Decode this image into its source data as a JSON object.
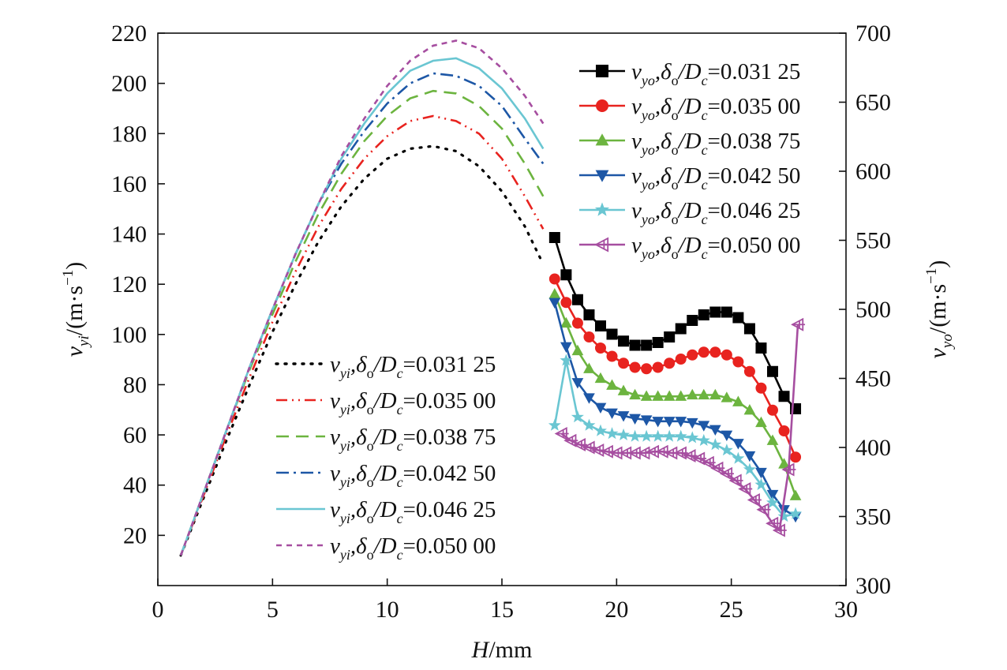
{
  "chart_data": {
    "type": "line",
    "xlabel": "H/mm",
    "ylabel_left": "v_yi/(m·s⁻¹)",
    "ylabel_right": "v_yo/(m·s⁻¹)",
    "xlim": [
      0,
      30
    ],
    "ylim_left": [
      0,
      220
    ],
    "ylim_right": [
      300,
      700
    ],
    "x_ticks": [
      0,
      5,
      10,
      15,
      20,
      25,
      30
    ],
    "y_ticks_left": [
      20,
      40,
      60,
      80,
      100,
      120,
      140,
      160,
      180,
      200,
      220
    ],
    "y_ticks_right": [
      300,
      350,
      400,
      450,
      500,
      550,
      600,
      650,
      700
    ],
    "grid": false,
    "legend_inner": {
      "placement": "top-right",
      "entries": [
        {
          "var_main": "v",
          "var_sub": "yo",
          "rest": ",δ",
          "sub2": "o",
          "rest2": "/D",
          "sub3": "c",
          "value": "=0.031 25",
          "color": "#000000",
          "marker": "square"
        },
        {
          "var_main": "v",
          "var_sub": "yo",
          "rest": ",δ",
          "sub2": "o",
          "rest2": "/D",
          "sub3": "c",
          "value": "=0.035 00",
          "color": "#e8231f",
          "marker": "circle"
        },
        {
          "var_main": "v",
          "var_sub": "yo",
          "rest": ",δ",
          "sub2": "o",
          "rest2": "/D",
          "sub3": "c",
          "value": "=0.038 75",
          "color": "#6cb43f",
          "marker": "triangle-up"
        },
        {
          "var_main": "v",
          "var_sub": "yo",
          "rest": ",δ",
          "sub2": "o",
          "rest2": "/D",
          "sub3": "c",
          "value": "=0.042 50",
          "color": "#1d57a6",
          "marker": "triangle-down"
        },
        {
          "var_main": "v",
          "var_sub": "yo",
          "rest": ",δ",
          "sub2": "o",
          "rest2": "/D",
          "sub3": "c",
          "value": "=0.046 25",
          "color": "#6ac6d2",
          "marker": "star"
        },
        {
          "var_main": "v",
          "var_sub": "yo",
          "rest": ",δ",
          "sub2": "o",
          "rest2": "/D",
          "sub3": "c",
          "value": "=0.050 00",
          "color": "#a64ea0",
          "marker": "triangle-left"
        }
      ]
    },
    "legend_left": {
      "placement": "bottom-left",
      "entries": [
        {
          "var_main": "v",
          "var_sub": "yi",
          "rest": ",δ",
          "sub2": "o",
          "rest2": "/D",
          "sub3": "c",
          "value": "=0.031 25",
          "color": "#000000",
          "dash": "dotted"
        },
        {
          "var_main": "v",
          "var_sub": "yi",
          "rest": ",δ",
          "sub2": "o",
          "rest2": "/D",
          "sub3": "c",
          "value": "=0.035 00",
          "color": "#e8231f",
          "dash": "dash-dot-dot"
        },
        {
          "var_main": "v",
          "var_sub": "yi",
          "rest": ",δ",
          "sub2": "o",
          "rest2": "/D",
          "sub3": "c",
          "value": "=0.038 75",
          "color": "#6cb43f",
          "dash": "dashed"
        },
        {
          "var_main": "v",
          "var_sub": "yi",
          "rest": ",δ",
          "sub2": "o",
          "rest2": "/D",
          "sub3": "c",
          "value": "=0.042 50",
          "color": "#1d57a6",
          "dash": "dash-dot"
        },
        {
          "var_main": "v",
          "var_sub": "yi",
          "rest": ",δ",
          "sub2": "o",
          "rest2": "/D",
          "sub3": "c",
          "value": "=0.046 25",
          "color": "#6ac6d2",
          "dash": "solid"
        },
        {
          "var_main": "v",
          "var_sub": "yi",
          "rest": ",δ",
          "sub2": "o",
          "rest2": "/D",
          "sub3": "c",
          "value": "=0.050 00",
          "color": "#a64ea0",
          "dash": "short-dash"
        }
      ]
    },
    "series_inner": [
      {
        "color": "#000000",
        "dash": "dotted",
        "x": [
          1,
          2,
          3,
          4,
          5,
          6,
          7,
          8,
          9,
          10,
          11,
          12,
          13,
          14,
          15,
          16,
          16.8
        ],
        "y": [
          12,
          35,
          58,
          80,
          101,
          120,
          137,
          151,
          162,
          170,
          174,
          175,
          173,
          167,
          157,
          143,
          128
        ]
      },
      {
        "color": "#e8231f",
        "dash": "dash-dot-dot",
        "x": [
          1,
          2,
          3,
          4,
          5,
          6,
          7,
          8,
          9,
          10,
          11,
          12,
          13,
          14,
          15,
          16,
          16.8
        ],
        "y": [
          12,
          36,
          60,
          83,
          105,
          125,
          143,
          158,
          170,
          179,
          185,
          187,
          185,
          180,
          170,
          155,
          142
        ]
      },
      {
        "color": "#6cb43f",
        "dash": "dashed",
        "x": [
          1,
          2,
          3,
          4,
          5,
          6,
          7,
          8,
          9,
          10,
          11,
          12,
          13,
          14,
          15,
          16,
          16.8
        ],
        "y": [
          12,
          37,
          62,
          86,
          108,
          129,
          148,
          164,
          177,
          187,
          194,
          197,
          196,
          191,
          182,
          168,
          155
        ]
      },
      {
        "color": "#1d57a6",
        "dash": "dash-dot",
        "x": [
          1,
          2,
          3,
          4,
          5,
          6,
          7,
          8,
          9,
          10,
          11,
          12,
          13,
          14,
          15,
          16,
          16.8
        ],
        "y": [
          12,
          37,
          62,
          87,
          110,
          132,
          152,
          168,
          181,
          192,
          200,
          204,
          203,
          199,
          191,
          178,
          168
        ]
      },
      {
        "color": "#6ac6d2",
        "dash": "solid",
        "x": [
          1,
          2,
          3,
          4,
          5,
          6,
          7,
          8,
          9,
          10,
          11,
          12,
          13,
          14,
          15,
          16,
          16.8
        ],
        "y": [
          12,
          37,
          62,
          87,
          110,
          132,
          152,
          170,
          184,
          196,
          205,
          209,
          210,
          206,
          198,
          186,
          174
        ]
      },
      {
        "color": "#a64ea0",
        "dash": "short-dash",
        "x": [
          1,
          2,
          3,
          4,
          5,
          6,
          7,
          8,
          9,
          10,
          11,
          12,
          13,
          14,
          15,
          16,
          16.8
        ],
        "y": [
          12,
          37,
          62,
          87,
          110,
          132,
          152,
          171,
          186,
          199,
          209,
          215,
          217,
          214,
          206,
          195,
          184
        ]
      }
    ],
    "series_outer": [
      {
        "color": "#000000",
        "marker": "square",
        "x": [
          17.3,
          17.8,
          18.3,
          18.8,
          19.3,
          19.8,
          20.3,
          20.8,
          21.3,
          21.8,
          22.3,
          22.8,
          23.3,
          23.8,
          24.3,
          24.8,
          25.3,
          25.8,
          26.3,
          26.8,
          27.3,
          27.8
        ],
        "y": [
          552,
          525,
          507,
          496,
          488,
          482,
          477,
          474,
          474,
          476,
          480,
          486,
          492,
          496,
          498,
          498,
          494,
          486,
          472,
          455,
          437,
          428
        ]
      },
      {
        "color": "#e8231f",
        "marker": "circle",
        "x": [
          17.3,
          17.8,
          18.3,
          18.8,
          19.3,
          19.8,
          20.3,
          20.8,
          21.3,
          21.8,
          22.3,
          22.8,
          23.3,
          23.8,
          24.3,
          24.8,
          25.3,
          25.8,
          26.3,
          26.8,
          27.3,
          27.8
        ],
        "y": [
          522,
          505,
          490,
          480,
          472,
          466,
          461,
          458,
          457,
          458,
          461,
          464,
          467,
          469,
          469,
          467,
          462,
          455,
          443,
          427,
          412,
          393
        ]
      },
      {
        "color": "#6cb43f",
        "marker": "triangle-up",
        "x": [
          17.3,
          17.8,
          18.3,
          18.8,
          19.3,
          19.8,
          20.3,
          20.8,
          21.3,
          21.8,
          22.3,
          22.8,
          23.3,
          23.8,
          24.3,
          24.8,
          25.3,
          25.8,
          26.3,
          26.8,
          27.3,
          27.8
        ],
        "y": [
          511,
          490,
          470,
          457,
          450,
          445,
          441,
          438,
          437,
          437,
          437,
          437,
          438,
          438,
          438,
          436,
          433,
          427,
          418,
          405,
          388,
          365
        ]
      },
      {
        "color": "#1d57a6",
        "marker": "triangle-down",
        "x": [
          17.3,
          17.8,
          18.3,
          18.8,
          19.3,
          19.8,
          20.3,
          20.8,
          21.3,
          21.8,
          22.3,
          22.8,
          23.3,
          23.8,
          24.3,
          24.8,
          25.3,
          25.8,
          26.3,
          26.8,
          27.3,
          27.8
        ],
        "y": [
          505,
          473,
          447,
          436,
          429,
          425,
          423,
          421,
          420,
          419,
          419,
          419,
          418,
          416,
          413,
          409,
          403,
          394,
          382,
          366,
          355,
          350
        ]
      },
      {
        "color": "#6ac6d2",
        "marker": "star",
        "x": [
          17.3,
          17.8,
          18.3,
          18.8,
          19.3,
          19.8,
          20.3,
          20.8,
          21.3,
          21.8,
          22.3,
          22.8,
          23.3,
          23.8,
          24.3,
          24.8,
          25.3,
          25.8,
          26.3,
          26.8,
          27.3,
          27.8
        ],
        "y": [
          416,
          463,
          422,
          416,
          412,
          410,
          409,
          408,
          408,
          408,
          408,
          408,
          407,
          405,
          402,
          398,
          392,
          384,
          373,
          360,
          350,
          352
        ]
      },
      {
        "color": "#a64ea0",
        "marker": "triangle-left",
        "x": [
          17.6,
          18.0,
          18.4,
          18.8,
          19.2,
          19.6,
          20.0,
          20.4,
          20.8,
          21.2,
          21.6,
          22.0,
          22.4,
          22.8,
          23.2,
          23.6,
          24.0,
          24.4,
          24.8,
          25.2,
          25.6,
          26.0,
          26.4,
          26.8,
          27.1,
          27.5,
          27.9
        ],
        "y": [
          410,
          405,
          402,
          400,
          398,
          397,
          396,
          396,
          396,
          396,
          397,
          397,
          396,
          396,
          394,
          392,
          389,
          385,
          381,
          376,
          370,
          362,
          355,
          345,
          340,
          384,
          489
        ]
      }
    ]
  }
}
